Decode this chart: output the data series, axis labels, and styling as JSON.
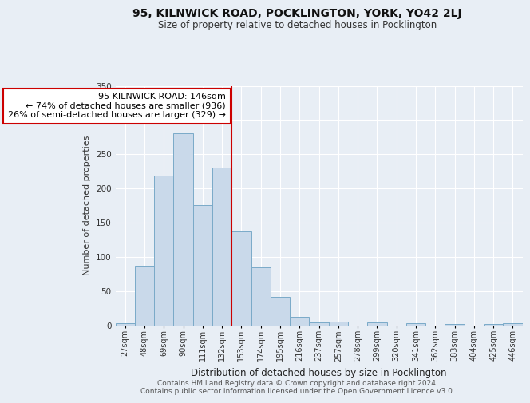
{
  "title": "95, KILNWICK ROAD, POCKLINGTON, YORK, YO42 2LJ",
  "subtitle": "Size of property relative to detached houses in Pocklington",
  "xlabel": "Distribution of detached houses by size in Pocklington",
  "ylabel": "Number of detached properties",
  "bin_labels": [
    "27sqm",
    "48sqm",
    "69sqm",
    "90sqm",
    "111sqm",
    "132sqm",
    "153sqm",
    "174sqm",
    "195sqm",
    "216sqm",
    "237sqm",
    "257sqm",
    "278sqm",
    "299sqm",
    "320sqm",
    "341sqm",
    "362sqm",
    "383sqm",
    "404sqm",
    "425sqm",
    "446sqm"
  ],
  "bar_heights": [
    3,
    87,
    219,
    281,
    176,
    231,
    137,
    85,
    42,
    12,
    4,
    5,
    0,
    4,
    0,
    3,
    0,
    2,
    0,
    2,
    3
  ],
  "bar_color": "#c9d9ea",
  "bar_edge_color": "#7aaac8",
  "red_line_index": 6,
  "annotation_text": "95 KILNWICK ROAD: 146sqm\n← 74% of detached houses are smaller (936)\n26% of semi-detached houses are larger (329) →",
  "annotation_box_color": "#ffffff",
  "annotation_box_edge": "#cc0000",
  "ylim": [
    0,
    350
  ],
  "yticks": [
    0,
    50,
    100,
    150,
    200,
    250,
    300,
    350
  ],
  "footer1": "Contains HM Land Registry data © Crown copyright and database right 2024.",
  "footer2": "Contains public sector information licensed under the Open Government Licence v3.0.",
  "background_color": "#e8eef5",
  "grid_color": "#ffffff"
}
